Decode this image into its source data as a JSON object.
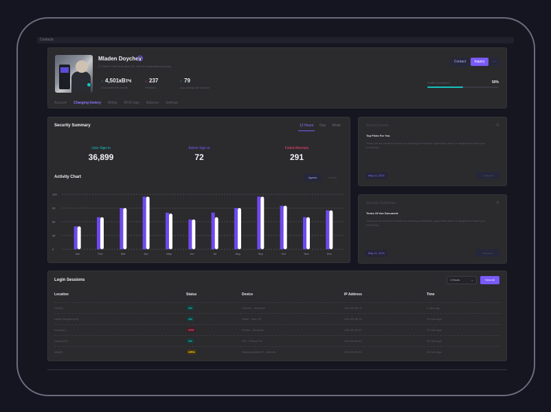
{
  "topbar": {
    "label": "Contacts"
  },
  "profile": {
    "name": "Mladen Doychev",
    "meta": "⦿  Client    ⌖  Tsar Boris Blvd 30, Sofia    ✉  mladen@evorion.ing",
    "stats": [
      {
        "value": "4,501кВтч",
        "label": "Consumed this month",
        "arrow": "↑",
        "color": "#14c3c0"
      },
      {
        "value": "237",
        "label": "Sessions",
        "arrow": "↓",
        "color": "#f1416c"
      },
      {
        "value": "79",
        "label": "Avg. charge per session",
        "arrow": "↑",
        "color": "#14c3c0"
      }
    ],
    "actions": {
      "contact": "Contact",
      "inquiry": "Inquiry",
      "more": "···"
    },
    "progress": {
      "label": "Profile Completion",
      "value": "50%",
      "fraction": 0.5
    },
    "tabs": [
      "Account",
      "Charging history",
      "Billing",
      "RFID tags",
      "Balance",
      "Settings"
    ],
    "active_tab": 1
  },
  "security": {
    "title": "Security Summary",
    "tabs": [
      "12 Hours",
      "Day",
      "Week"
    ],
    "kpis": [
      {
        "label": "User Sign-in",
        "value": "36,899",
        "color": "#14c3c0"
      },
      {
        "label": "Admin Sign-in",
        "value": "72",
        "color": "#7a5af8"
      },
      {
        "label": "Failed Attempts",
        "value": "291",
        "color": "#f1416c"
      }
    ],
    "chart_title": "Activity Chart",
    "chart_tabs": [
      "Agents",
      "Clients"
    ]
  },
  "chart_data": {
    "type": "bar",
    "title": "Activity Chart",
    "categories": [
      "Jan",
      "Feb",
      "Mar",
      "Apr",
      "May",
      "Jun",
      "Jul",
      "Aug",
      "Sep",
      "Oct",
      "Nov",
      "Dec"
    ],
    "series": [
      {
        "values": [
          50,
          70,
          90,
          115,
          80,
          65,
          80,
          90,
          115,
          95,
          70,
          85
        ],
        "color": "#6f49f0"
      },
      {
        "values": [
          50,
          70,
          90,
          115,
          78,
          65,
          70,
          90,
          115,
          95,
          70,
          85
        ],
        "color": "#ffffff"
      }
    ],
    "y_ticks": [
      "0",
      "30",
      "60",
      "90",
      "120"
    ],
    "ylim": [
      0,
      120
    ],
    "grid": true
  },
  "cards": [
    {
      "title": "Recent Events",
      "heading": "Top Picks For You",
      "body": "Today we are excited to share an amazing certification opportunity which is designed to teach you everything",
      "date": "May 11, 2021",
      "button": "Continue",
      "menu": "··· ⚙"
    },
    {
      "title": "Security Guidelines",
      "heading": "Terms Of Use Document",
      "body": "Today we are excited to share an amazing certification opportunity which is designed to teach you everything",
      "date": "May 11, 2021",
      "button": "Discover",
      "menu": "··· ⚙"
    }
  ],
  "sessions": {
    "title": "Login Sessions",
    "filter": "1 Hours",
    "view_all": "View All",
    "columns": [
      "Location",
      "Status",
      "Device",
      "IP Address",
      "Time"
    ],
    "rows": [
      {
        "location": "USA(5)",
        "status": "OK",
        "status_color": "#14c3c0",
        "status_bg": "#173a3a",
        "device": "Chrome - Windows",
        "ip": "236.125.56.78",
        "time": "2 mins ago"
      },
      {
        "location": "United Kingdom(10)",
        "status": "OK",
        "status_color": "#14c3c0",
        "status_bg": "#173a3a",
        "device": "Safari - Mac OS",
        "ip": "236.125.56.78",
        "time": "10 mins ago"
      },
      {
        "location": "Norway(-)",
        "status": "ERR",
        "status_color": "#f1416c",
        "status_bg": "#3f1d27",
        "device": "Firefox - Windows",
        "ip": "236.125.56.10",
        "time": "20 mins ago"
      },
      {
        "location": "Japan(112)",
        "status": "OK",
        "status_color": "#14c3c0",
        "status_bg": "#173a3a",
        "device": "iOS - iPhone Pro",
        "ip": "236.125.56.54",
        "time": "30 mins ago"
      },
      {
        "location": "Italy(5)",
        "status": "WRN",
        "status_color": "#ffc700",
        "status_bg": "#3d3519",
        "device": "Samsung Noted 5 - Android",
        "ip": "236.100.56.50",
        "time": "40 mins ago"
      }
    ]
  }
}
